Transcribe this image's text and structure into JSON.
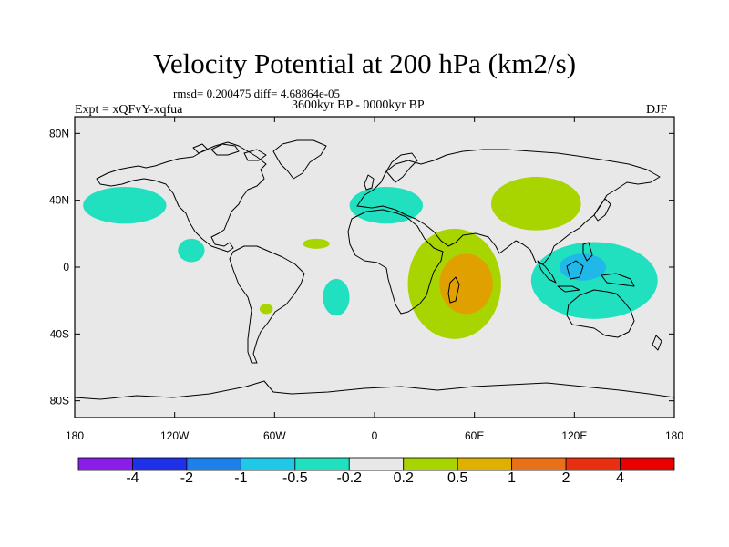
{
  "title": "Velocity Potential at 200 hPa (km2/s)",
  "stats": "rmsd= 0.200475  diff= 4.68864e-05",
  "period": "3600kyr BP - 0000kyr BP",
  "experiment": "Expt = xQFvY-xqfua",
  "season": "DJF",
  "map": {
    "lon_range": [
      -180,
      180
    ],
    "lat_range": [
      -90,
      90
    ],
    "ocean_color": "#e8e8e8",
    "x_ticks": [
      {
        "lon": -180,
        "label": "180"
      },
      {
        "lon": -120,
        "label": "120W"
      },
      {
        "lon": -60,
        "label": "60W"
      },
      {
        "lon": 0,
        "label": "0"
      },
      {
        "lon": 60,
        "label": "60E"
      },
      {
        "lon": 120,
        "label": "120E"
      },
      {
        "lon": 180,
        "label": "180"
      }
    ],
    "y_ticks": [
      {
        "lat": 80,
        "label": "80N"
      },
      {
        "lat": 40,
        "label": "40N"
      },
      {
        "lat": 0,
        "label": "0"
      },
      {
        "lat": -40,
        "label": "40S"
      },
      {
        "lat": -80,
        "label": "80S"
      }
    ]
  },
  "anomalies": [
    {
      "name": "north-pacific-negative",
      "lon": -150,
      "lat": 37,
      "rlon": 25,
      "rlat": 11,
      "color": "#20e0c0"
    },
    {
      "name": "east-pacific-negative",
      "lon": -110,
      "lat": 10,
      "rlon": 8,
      "rlat": 7,
      "color": "#20e0c0"
    },
    {
      "name": "south-atlantic-negative",
      "lon": -23,
      "lat": -18,
      "rlon": 8,
      "rlat": 11,
      "color": "#20e0c0"
    },
    {
      "name": "europe-negative",
      "lon": 7,
      "lat": 37,
      "rlon": 22,
      "rlat": 11,
      "color": "#20e0c0"
    },
    {
      "name": "atlantic-small-positive",
      "lon": -35,
      "lat": 14,
      "rlon": 8,
      "rlat": 3,
      "color": "#a8d400"
    },
    {
      "name": "south-america-small-positive",
      "lon": -65,
      "lat": -25,
      "rlon": 4,
      "rlat": 3,
      "color": "#a8d400"
    },
    {
      "name": "east-asia-positive",
      "lon": 97,
      "lat": 38,
      "rlon": 27,
      "rlat": 16,
      "color": "#a8d400"
    },
    {
      "name": "africa-indian-ocean-positive",
      "lon": 48,
      "lat": -10,
      "rlon": 28,
      "rlat": 33,
      "color": "#a8d400"
    },
    {
      "name": "africa-indian-ocean-core",
      "lon": 55,
      "lat": -10,
      "rlon": 16,
      "rlat": 18,
      "color": "#e0a000"
    },
    {
      "name": "maritime-continent-negative",
      "lon": 132,
      "lat": -8,
      "rlon": 38,
      "rlat": 23,
      "color": "#20e0c0"
    },
    {
      "name": "maritime-continent-core",
      "lon": 125,
      "lat": 0,
      "rlon": 14,
      "rlat": 8,
      "color": "#20b8e8"
    }
  ],
  "colorbar": {
    "colors": [
      "#8a1ee8",
      "#2030e8",
      "#1c80e8",
      "#20c8e8",
      "#20e0c0",
      "#e8e8e8",
      "#a8d400",
      "#e0b000",
      "#e87018",
      "#e83010",
      "#e80000"
    ],
    "labels": [
      "-4",
      "-2",
      "-1",
      "-0.5",
      "-0.2",
      "0.2",
      "0.5",
      "1",
      "2",
      "4"
    ]
  }
}
